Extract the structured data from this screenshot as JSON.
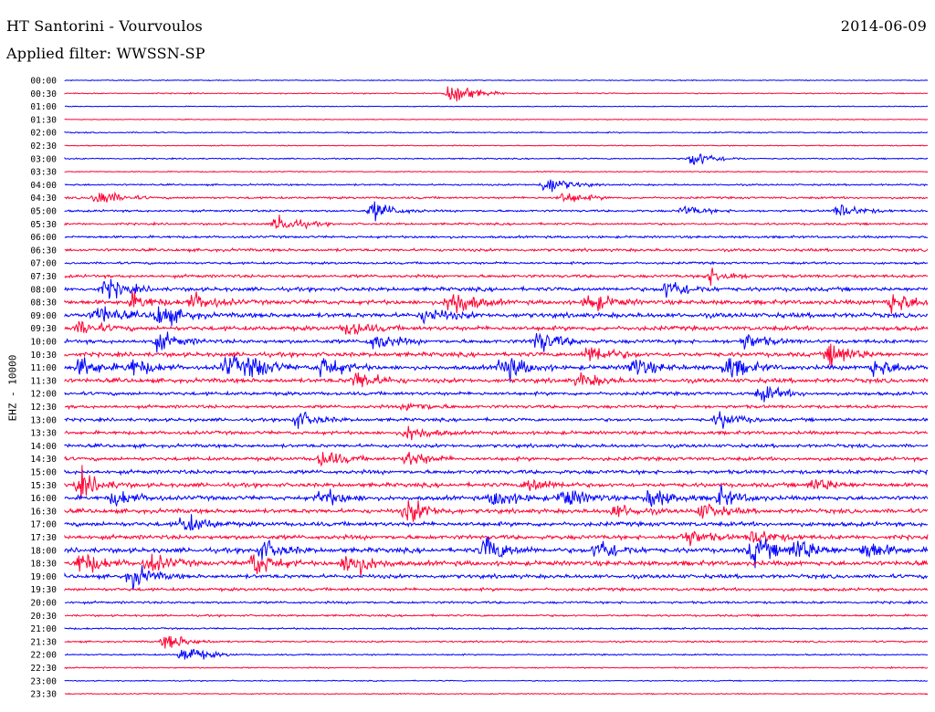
{
  "header": {
    "station": "HT Santorini - Vourvoulos",
    "date": "2014-06-09",
    "filter_label": "Applied filter: WWSSN-SP"
  },
  "chart_data": {
    "type": "line",
    "title": "HT Santorini - Vourvoulos",
    "subtitle": "Applied filter: WWSSN-SP",
    "ylabel": "EHZ - 10000",
    "xlabel": "",
    "colors": [
      "#0000ff",
      "#ff0033"
    ],
    "grid": false,
    "rows": [
      "00:00",
      "00:30",
      "01:00",
      "01:30",
      "02:00",
      "02:30",
      "03:00",
      "03:30",
      "04:00",
      "04:30",
      "05:00",
      "05:30",
      "06:00",
      "06:30",
      "07:00",
      "07:30",
      "08:00",
      "08:30",
      "09:00",
      "09:30",
      "10:00",
      "10:30",
      "11:00",
      "11:30",
      "12:00",
      "12:30",
      "13:00",
      "13:30",
      "14:00",
      "14:30",
      "15:00",
      "15:30",
      "16:00",
      "16:30",
      "17:00",
      "17:30",
      "18:00",
      "18:30",
      "19:00",
      "19:30",
      "20:00",
      "20:30",
      "21:00",
      "21:30",
      "22:00",
      "22:30",
      "23:00",
      "23:30"
    ],
    "noise": [
      0.4,
      0.5,
      0.4,
      0.4,
      0.6,
      0.5,
      0.6,
      0.5,
      0.8,
      1.0,
      1.0,
      1.0,
      1.1,
      1.3,
      1.1,
      1.4,
      1.8,
      2.0,
      2.2,
      2.0,
      1.8,
      2.0,
      2.0,
      2.0,
      1.6,
      1.5,
      1.5,
      1.6,
      1.6,
      1.7,
      1.8,
      1.9,
      2.0,
      2.0,
      2.0,
      2.0,
      2.2,
      2.2,
      1.8,
      1.4,
      1.1,
      0.9,
      0.8,
      0.8,
      0.7,
      0.6,
      0.5,
      0.5
    ],
    "events": [
      {
        "row": 1,
        "t": 0.45,
        "amp": 14
      },
      {
        "row": 6,
        "t": 0.73,
        "amp": 9
      },
      {
        "row": 8,
        "t": 0.56,
        "amp": 10
      },
      {
        "row": 9,
        "t": 0.04,
        "amp": 9
      },
      {
        "row": 9,
        "t": 0.58,
        "amp": 6
      },
      {
        "row": 10,
        "t": 0.36,
        "amp": 10
      },
      {
        "row": 10,
        "t": 0.72,
        "amp": 5
      },
      {
        "row": 10,
        "t": 0.9,
        "amp": 7
      },
      {
        "row": 11,
        "t": 0.25,
        "amp": 10
      },
      {
        "row": 15,
        "t": 0.75,
        "amp": 8
      },
      {
        "row": 16,
        "t": 0.05,
        "amp": 10
      },
      {
        "row": 16,
        "t": 0.7,
        "amp": 11
      },
      {
        "row": 17,
        "t": 0.08,
        "amp": 8
      },
      {
        "row": 17,
        "t": 0.15,
        "amp": 9
      },
      {
        "row": 17,
        "t": 0.45,
        "amp": 16
      },
      {
        "row": 17,
        "t": 0.61,
        "amp": 10
      },
      {
        "row": 17,
        "t": 0.96,
        "amp": 12
      },
      {
        "row": 18,
        "t": 0.04,
        "amp": 10
      },
      {
        "row": 18,
        "t": 0.11,
        "amp": 12
      },
      {
        "row": 18,
        "t": 0.42,
        "amp": 8
      },
      {
        "row": 19,
        "t": 0.02,
        "amp": 7
      },
      {
        "row": 19,
        "t": 0.33,
        "amp": 8
      },
      {
        "row": 20,
        "t": 0.11,
        "amp": 9
      },
      {
        "row": 20,
        "t": 0.36,
        "amp": 9
      },
      {
        "row": 20,
        "t": 0.55,
        "amp": 12
      },
      {
        "row": 20,
        "t": 0.79,
        "amp": 8
      },
      {
        "row": 21,
        "t": 0.61,
        "amp": 11
      },
      {
        "row": 21,
        "t": 0.89,
        "amp": 13
      },
      {
        "row": 22,
        "t": 0.02,
        "amp": 10
      },
      {
        "row": 22,
        "t": 0.08,
        "amp": 9
      },
      {
        "row": 22,
        "t": 0.19,
        "amp": 12
      },
      {
        "row": 22,
        "t": 0.22,
        "amp": 10
      },
      {
        "row": 22,
        "t": 0.3,
        "amp": 12
      },
      {
        "row": 22,
        "t": 0.51,
        "amp": 14
      },
      {
        "row": 22,
        "t": 0.66,
        "amp": 10
      },
      {
        "row": 22,
        "t": 0.77,
        "amp": 12
      },
      {
        "row": 22,
        "t": 0.94,
        "amp": 10
      },
      {
        "row": 23,
        "t": 0.34,
        "amp": 10
      },
      {
        "row": 23,
        "t": 0.6,
        "amp": 7
      },
      {
        "row": 24,
        "t": 0.81,
        "amp": 8
      },
      {
        "row": 25,
        "t": 0.4,
        "amp": 5
      },
      {
        "row": 26,
        "t": 0.27,
        "amp": 9
      },
      {
        "row": 26,
        "t": 0.76,
        "amp": 8
      },
      {
        "row": 27,
        "t": 0.4,
        "amp": 8
      },
      {
        "row": 29,
        "t": 0.3,
        "amp": 9
      },
      {
        "row": 29,
        "t": 0.4,
        "amp": 8
      },
      {
        "row": 31,
        "t": 0.02,
        "amp": 12
      },
      {
        "row": 31,
        "t": 0.54,
        "amp": 8
      },
      {
        "row": 31,
        "t": 0.87,
        "amp": 7
      },
      {
        "row": 32,
        "t": 0.06,
        "amp": 8
      },
      {
        "row": 32,
        "t": 0.3,
        "amp": 9
      },
      {
        "row": 32,
        "t": 0.5,
        "amp": 10
      },
      {
        "row": 32,
        "t": 0.58,
        "amp": 11
      },
      {
        "row": 32,
        "t": 0.68,
        "amp": 10
      },
      {
        "row": 32,
        "t": 0.76,
        "amp": 9
      },
      {
        "row": 33,
        "t": 0.4,
        "amp": 12
      },
      {
        "row": 33,
        "t": 0.64,
        "amp": 7
      },
      {
        "row": 33,
        "t": 0.74,
        "amp": 8
      },
      {
        "row": 34,
        "t": 0.14,
        "amp": 10
      },
      {
        "row": 35,
        "t": 0.72,
        "amp": 9
      },
      {
        "row": 35,
        "t": 0.8,
        "amp": 8
      },
      {
        "row": 36,
        "t": 0.23,
        "amp": 10
      },
      {
        "row": 36,
        "t": 0.49,
        "amp": 14
      },
      {
        "row": 36,
        "t": 0.62,
        "amp": 12
      },
      {
        "row": 36,
        "t": 0.8,
        "amp": 14
      },
      {
        "row": 36,
        "t": 0.85,
        "amp": 12
      },
      {
        "row": 36,
        "t": 0.93,
        "amp": 10
      },
      {
        "row": 37,
        "t": 0.02,
        "amp": 12
      },
      {
        "row": 37,
        "t": 0.1,
        "amp": 9
      },
      {
        "row": 37,
        "t": 0.22,
        "amp": 13
      },
      {
        "row": 37,
        "t": 0.33,
        "amp": 15
      },
      {
        "row": 38,
        "t": 0.08,
        "amp": 11
      },
      {
        "row": 43,
        "t": 0.12,
        "amp": 9
      },
      {
        "row": 44,
        "t": 0.14,
        "amp": 10
      }
    ]
  }
}
